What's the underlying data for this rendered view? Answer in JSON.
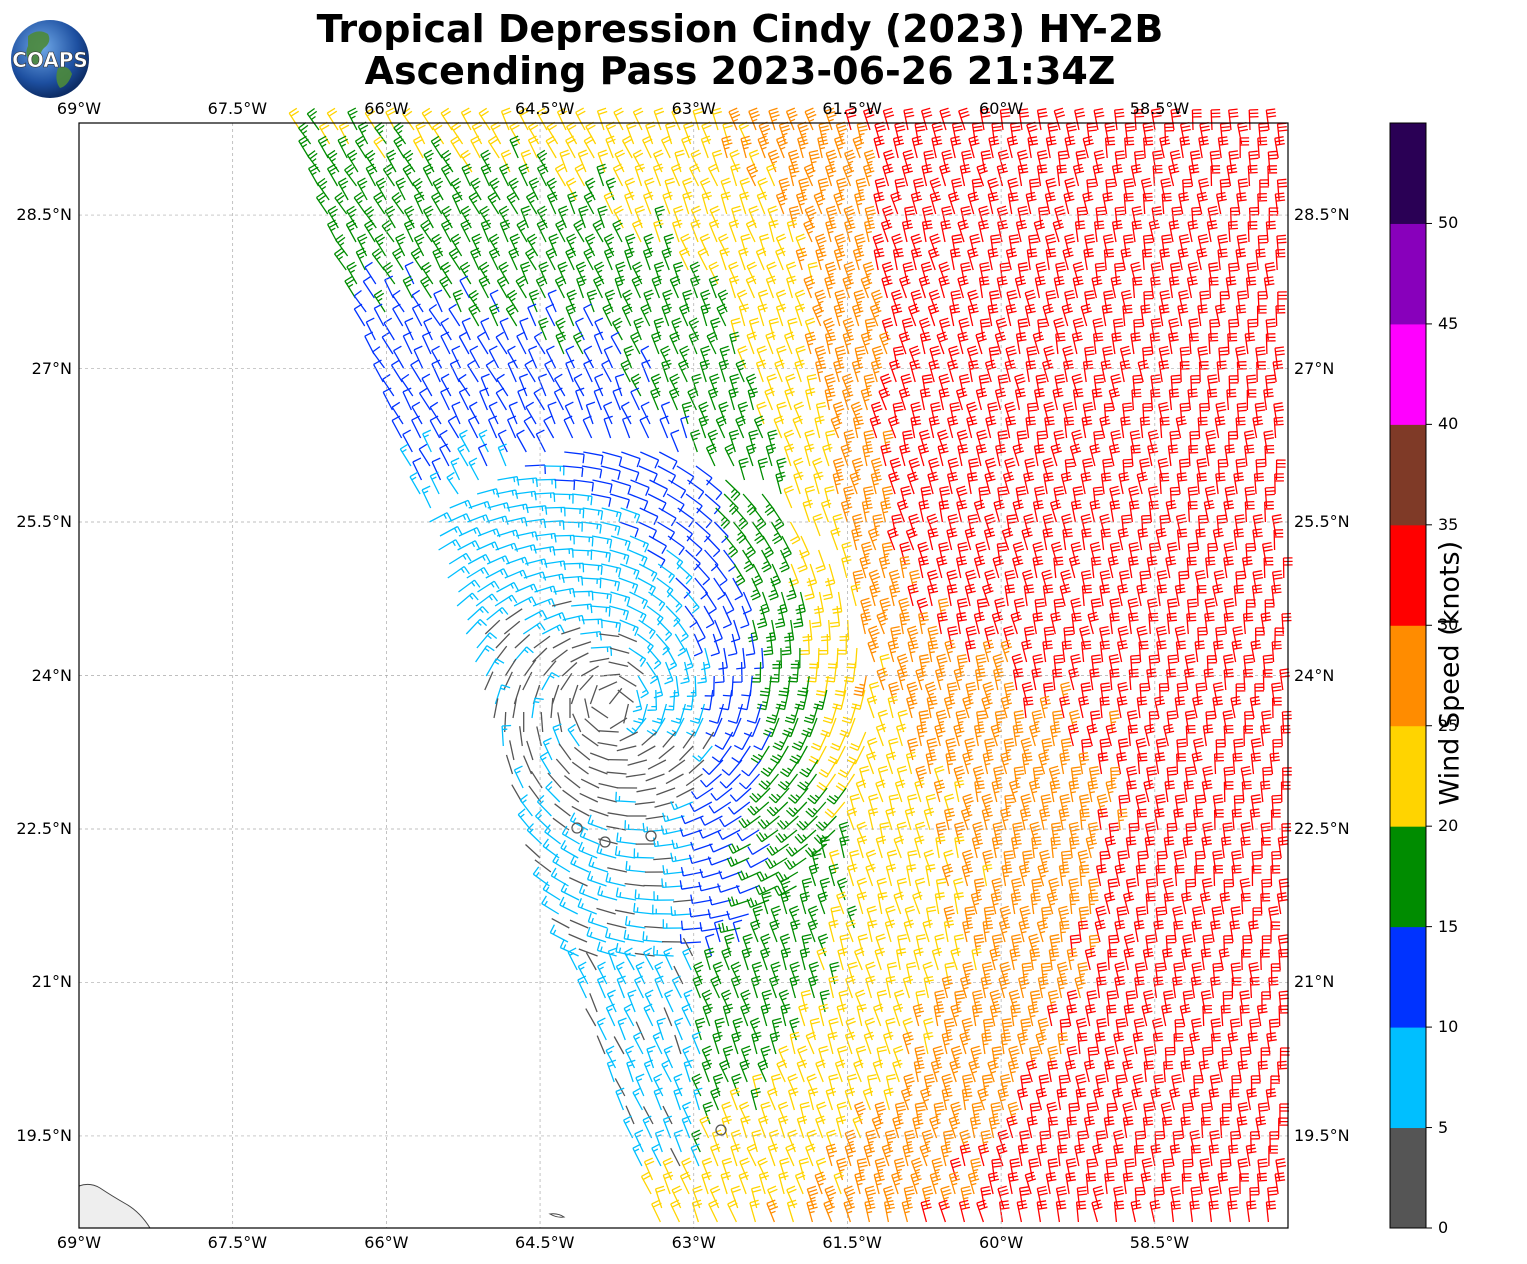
{
  "title": {
    "line1": "Tropical Depression Cindy (2023) HY-2B",
    "line2": "Ascending Pass 2023-06-26 21:34Z"
  },
  "logo": {
    "text": "COAPS"
  },
  "map": {
    "lon_ticks": [
      "69°W",
      "67.5°W",
      "66°W",
      "64.5°W",
      "63°W",
      "61.5°W",
      "60°W",
      "58.5°W"
    ],
    "lat_ticks": [
      "28.5°N",
      "27°N",
      "25.5°N",
      "24°N",
      "22.5°N",
      "21°N",
      "19.5°N"
    ],
    "lon_range": [
      -69,
      -57.2
    ],
    "lat_range": [
      18.6,
      29.4
    ],
    "grid": true
  },
  "colorbar": {
    "title": "Wind Speed (knots)",
    "ticks": [
      "0",
      "5",
      "10",
      "15",
      "20",
      "25",
      "30",
      "35",
      "40",
      "45",
      "50"
    ],
    "colors": [
      "#555555",
      "#00bfff",
      "#0033ff",
      "#008c00",
      "#ffd400",
      "#ff8c00",
      "#ff0000",
      "#7f3a27",
      "#ff00ff",
      "#8800bb",
      "#2a0055"
    ]
  }
}
